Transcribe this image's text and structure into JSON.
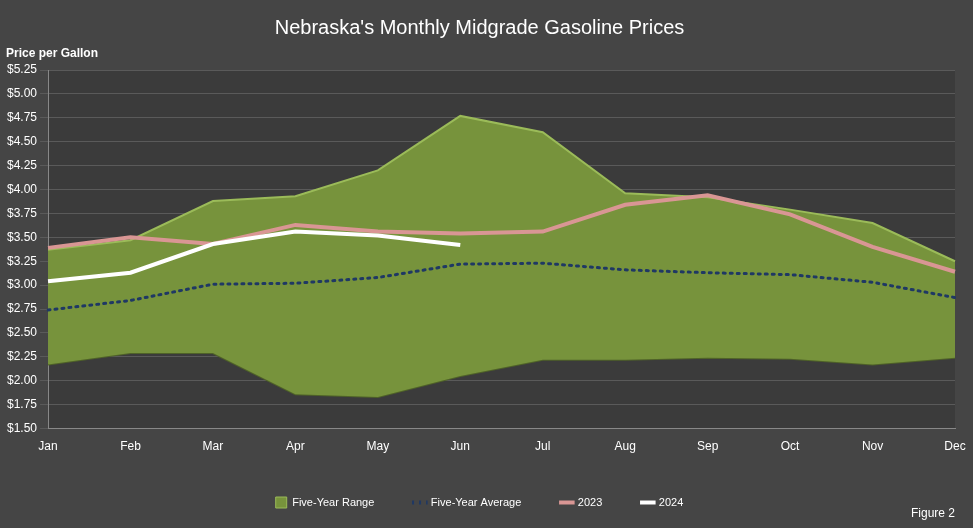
{
  "chart_data": {
    "type": "line",
    "title": "Nebraska's Monthly Midgrade Gasoline Prices",
    "y_label": "Price per Gallon",
    "annotation": "Figure 2",
    "categories": [
      "Jan",
      "Feb",
      "Mar",
      "Apr",
      "May",
      "Jun",
      "Jul",
      "Aug",
      "Sep",
      "Oct",
      "Nov",
      "Dec"
    ],
    "series": [
      {
        "name": "Five-Year Range",
        "type": "range",
        "color": "#77933c",
        "low": [
          2.17,
          2.29,
          2.29,
          1.86,
          1.83,
          2.05,
          2.22,
          2.22,
          2.24,
          2.23,
          2.17,
          2.24
        ],
        "high": [
          3.37,
          3.47,
          3.88,
          3.93,
          4.2,
          4.77,
          4.6,
          3.96,
          3.92,
          3.79,
          3.65,
          3.25
        ]
      },
      {
        "name": "Five-Year Average",
        "color": "#1f3864",
        "line_style": "dotted",
        "values": [
          2.74,
          2.84,
          3.01,
          3.02,
          3.08,
          3.22,
          3.23,
          3.16,
          3.13,
          3.11,
          3.03,
          2.87
        ]
      },
      {
        "name": "2023",
        "color": "#d99694",
        "line_style": "solid",
        "values": [
          3.39,
          3.5,
          3.43,
          3.63,
          3.56,
          3.54,
          3.56,
          3.84,
          3.94,
          3.74,
          3.4,
          3.14
        ]
      },
      {
        "name": "2024",
        "color": "#ffffff",
        "line_style": "solid",
        "values": [
          3.04,
          3.13,
          3.43,
          3.56,
          3.52,
          3.42,
          null,
          null,
          null,
          null,
          null,
          null
        ]
      }
    ],
    "ylim": [
      1.5,
      5.25
    ],
    "yticks": [
      {
        "value": 1.5,
        "label": "$1.50"
      },
      {
        "value": 1.75,
        "label": "$1.75"
      },
      {
        "value": 2.0,
        "label": "$2.00"
      },
      {
        "value": 2.25,
        "label": "$2.25"
      },
      {
        "value": 2.5,
        "label": "$2.50"
      },
      {
        "value": 2.75,
        "label": "$2.75"
      },
      {
        "value": 3.0,
        "label": "$3.00"
      },
      {
        "value": 3.25,
        "label": "$3.25"
      },
      {
        "value": 3.5,
        "label": "$3.50"
      },
      {
        "value": 3.75,
        "label": "$3.75"
      },
      {
        "value": 4.0,
        "label": "$4.00"
      },
      {
        "value": 4.25,
        "label": "$4.25"
      },
      {
        "value": 4.5,
        "label": "$4.50"
      },
      {
        "value": 4.75,
        "label": "$4.75"
      },
      {
        "value": 5.0,
        "label": "$5.00"
      },
      {
        "value": 5.25,
        "label": "$5.25"
      }
    ],
    "grid": true,
    "legend": "bottom"
  }
}
